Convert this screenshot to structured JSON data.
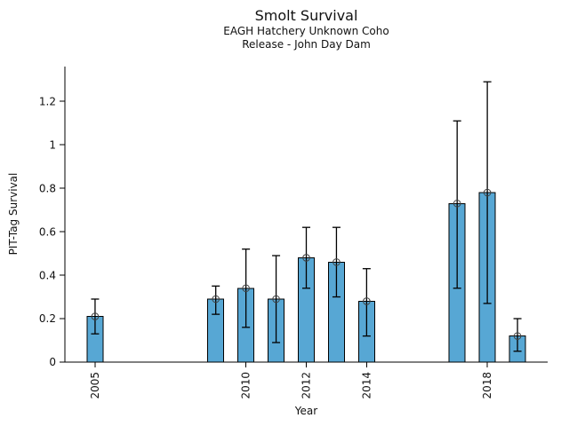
{
  "chart_data": {
    "type": "bar",
    "title": "Smolt Survival",
    "subtitle1": "EAGH Hatchery Unknown Coho",
    "subtitle2": "Release - John Day Dam",
    "xlabel": "Year",
    "ylabel": "PIT-Tag Survival",
    "xlim": [
      2004,
      2020
    ],
    "ylim": [
      0,
      1.36
    ],
    "grid": false,
    "legend": "none",
    "bar_color": "#57a7d4",
    "bar_edge_color": "#000000",
    "error_bar_color": "#000000",
    "marker_style": "open-circle",
    "marker_color": "#404040",
    "yticks": {
      "values": [
        0,
        0.2,
        0.4,
        0.6,
        0.8,
        1,
        1.2
      ],
      "labels": [
        "0",
        "0.2",
        "0.4",
        "0.6",
        "0.8",
        "1",
        "1.2"
      ]
    },
    "xticks": {
      "values": [
        2005,
        2010,
        2012,
        2014,
        2018
      ],
      "labels": [
        "2005",
        "2010",
        "2012",
        "2014",
        "2018"
      ]
    },
    "series": [
      {
        "name": "PIT-Tag Survival",
        "points": [
          {
            "year": 2005,
            "value": 0.21,
            "ci_low": 0.13,
            "ci_high": 0.29
          },
          {
            "year": 2009,
            "value": 0.29,
            "ci_low": 0.22,
            "ci_high": 0.35
          },
          {
            "year": 2010,
            "value": 0.34,
            "ci_low": 0.16,
            "ci_high": 0.52
          },
          {
            "year": 2011,
            "value": 0.29,
            "ci_low": 0.09,
            "ci_high": 0.49
          },
          {
            "year": 2012,
            "value": 0.48,
            "ci_low": 0.34,
            "ci_high": 0.62
          },
          {
            "year": 2013,
            "value": 0.46,
            "ci_low": 0.3,
            "ci_high": 0.62
          },
          {
            "year": 2014,
            "value": 0.28,
            "ci_low": 0.12,
            "ci_high": 0.43
          },
          {
            "year": 2017,
            "value": 0.73,
            "ci_low": 0.34,
            "ci_high": 1.11
          },
          {
            "year": 2018,
            "value": 0.78,
            "ci_low": 0.27,
            "ci_high": 1.29
          },
          {
            "year": 2019,
            "value": 0.12,
            "ci_low": 0.05,
            "ci_high": 0.2
          }
        ]
      }
    ]
  }
}
